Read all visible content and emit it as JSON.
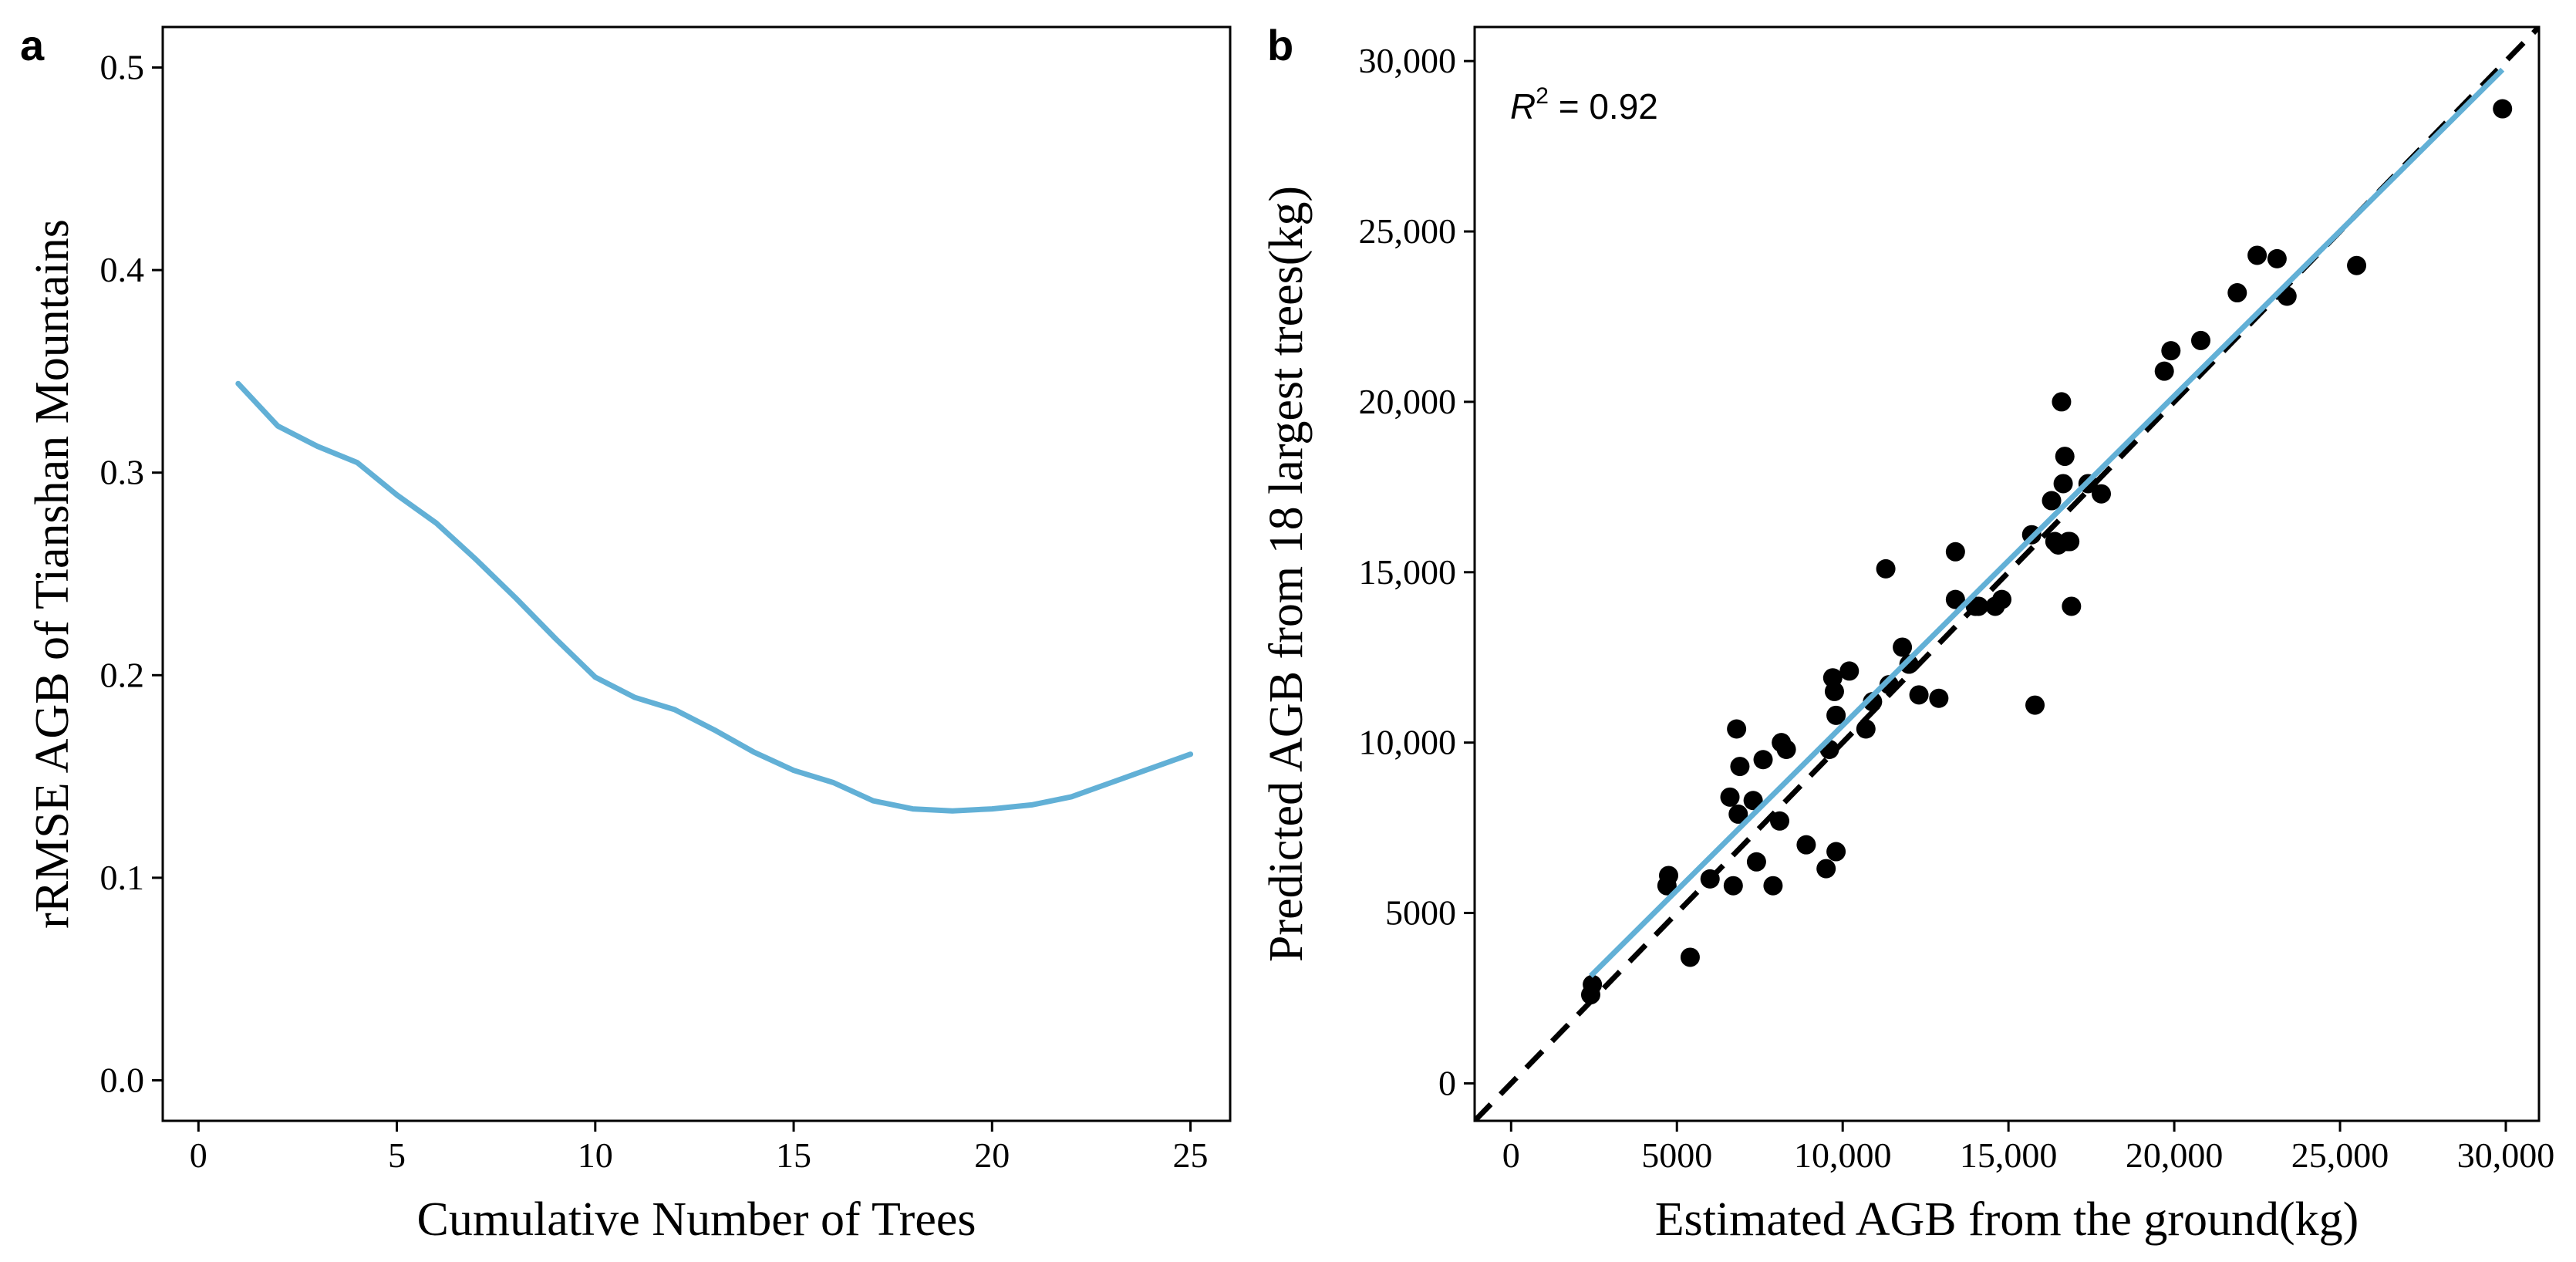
{
  "chart_data": [
    {
      "panel": "a",
      "type": "line",
      "title": "",
      "xlabel": "Cumulative Number of Trees",
      "ylabel": "rRMSE AGB of Tianshan Mountains",
      "xlim": [
        -0.9,
        26
      ],
      "ylim": [
        -0.02,
        0.52
      ],
      "xticks": [
        0,
        5,
        10,
        15,
        20,
        25
      ],
      "xtick_labels": [
        "0",
        "5",
        "10",
        "15",
        "20",
        "25"
      ],
      "yticks": [
        0.0,
        0.1,
        0.2,
        0.3,
        0.4,
        0.5
      ],
      "ytick_labels": [
        "0.0",
        "0.1",
        "0.2",
        "0.3",
        "0.4",
        "0.5"
      ],
      "grid": false,
      "series": [
        {
          "name": "rRMSE",
          "color": "#62b0d6",
          "x": [
            1,
            2,
            3,
            4,
            5,
            6,
            7,
            8,
            9,
            10,
            11,
            12,
            13,
            14,
            15,
            16,
            17,
            18,
            19,
            20,
            21,
            22,
            23,
            24,
            25
          ],
          "y": [
            0.344,
            0.323,
            0.313,
            0.305,
            0.289,
            0.275,
            0.257,
            0.238,
            0.218,
            0.199,
            0.189,
            0.183,
            0.173,
            0.162,
            0.153,
            0.147,
            0.138,
            0.134,
            0.133,
            0.134,
            0.136,
            0.14,
            0.147,
            0.154,
            0.161
          ]
        }
      ]
    },
    {
      "panel": "b",
      "type": "scatter",
      "title": "",
      "xlabel": "Estimated AGB from the ground(kg)",
      "ylabel": "Predicted AGB from 18 largest trees(kg)",
      "xlim": [
        -1100,
        31000
      ],
      "ylim": [
        -1100,
        31000
      ],
      "xticks": [
        0,
        5000,
        10000,
        15000,
        20000,
        25000,
        30000
      ],
      "xtick_labels": [
        "0",
        "5000",
        "10,000",
        "15,000",
        "20,000",
        "25,000",
        "30,000"
      ],
      "yticks": [
        0,
        5000,
        10000,
        15000,
        20000,
        25000,
        30000
      ],
      "ytick_labels": [
        "0",
        "5000",
        "10,000",
        "15,000",
        "20,000",
        "25,000",
        "30,000"
      ],
      "grid": false,
      "annotation": {
        "prefix": "R",
        "superscript": "2",
        "text": " = 0.92"
      },
      "identity_line": {
        "style": "dashed",
        "color": "#000000",
        "from": [
          -1100,
          -1100
        ],
        "to": [
          31000,
          31000
        ]
      },
      "fit_line": {
        "color": "#62b0d6",
        "x": [
          2400,
          29900
        ],
        "y": [
          3150,
          29750
        ]
      },
      "points": {
        "color": "#000000",
        "x": [
          2400,
          2450,
          4700,
          4750,
          5400,
          6000,
          6600,
          6700,
          6800,
          6850,
          6900,
          7300,
          7400,
          7600,
          7900,
          8100,
          8150,
          8300,
          8900,
          9500,
          9600,
          9700,
          9750,
          9800,
          9800,
          10200,
          10700,
          10900,
          11300,
          11400,
          11800,
          12000,
          12300,
          12900,
          13400,
          13400,
          14000,
          14100,
          14600,
          14800,
          15700,
          15800,
          16300,
          16400,
          16500,
          16600,
          16650,
          16700,
          16800,
          16850,
          16900,
          17400,
          17800,
          19700,
          19900,
          20800,
          21900,
          22500,
          23100,
          23400,
          25500,
          29900
        ],
        "y": [
          2600,
          2900,
          5800,
          6100,
          3700,
          6000,
          8400,
          5800,
          10400,
          7900,
          9300,
          8300,
          6500,
          9500,
          5800,
          7700,
          10000,
          9800,
          7000,
          6300,
          9800,
          11900,
          11500,
          10800,
          6800,
          12100,
          10400,
          11200,
          15100,
          11700,
          12800,
          12300,
          11400,
          11300,
          15600,
          14200,
          14000,
          14000,
          14000,
          14200,
          16100,
          11100,
          17100,
          15900,
          15800,
          20000,
          17600,
          18400,
          15900,
          15900,
          14000,
          17600,
          17300,
          20900,
          21500,
          21800,
          23200,
          24300,
          24200,
          23100,
          24000,
          28600
        ]
      }
    }
  ]
}
